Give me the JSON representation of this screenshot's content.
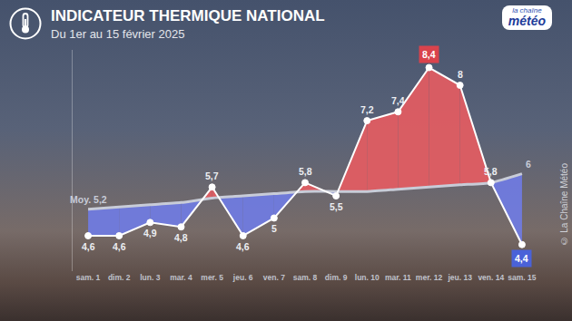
{
  "chart_data": {
    "type": "line",
    "title": "INDICATEUR THERMIQUE NATIONAL",
    "subtitle": "Du 1er au 15 février 2025",
    "categories": [
      "sam. 1",
      "dim. 2",
      "lun. 3",
      "mar. 4",
      "mer. 5",
      "jeu. 6",
      "ven. 7",
      "sam. 8",
      "dim. 9",
      "lun. 10",
      "mar. 11",
      "mer. 12",
      "jeu. 13",
      "ven. 14",
      "sam. 15"
    ],
    "series": [
      {
        "color": "#ffffff",
        "marker": "circle",
        "values": [
          4.6,
          4.6,
          4.9,
          4.8,
          5.7,
          4.6,
          5,
          5.8,
          5.5,
          7.2,
          7.4,
          8.4,
          8,
          5.8,
          4.4
        ],
        "value_labels": [
          "4,6",
          "4,6",
          "4,9",
          "4,8",
          "5,7",
          "4,6",
          "5",
          "5,8",
          "5,5",
          "7,2",
          "7,4",
          "8,4",
          "8",
          "5,8",
          "4,4"
        ]
      },
      {
        "color": "#c8ccd8",
        "values": [
          5.2,
          5.25,
          5.3,
          5.35,
          5.45,
          5.5,
          5.55,
          5.6,
          5.6,
          5.6,
          5.65,
          5.7,
          5.75,
          5.8,
          6
        ],
        "value_labels": [
          "Moy. 5,2",
          null,
          null,
          null,
          null,
          null,
          null,
          null,
          null,
          null,
          null,
          null,
          null,
          null,
          "6"
        ]
      }
    ],
    "ylim": [
      3.8,
      8.8
    ],
    "grid": false,
    "data_labels": true,
    "tick_labels": "x"
  },
  "logo": {
    "line1": "la chaîne",
    "line2": "météo"
  },
  "credit": "© La Chaîne Météo"
}
